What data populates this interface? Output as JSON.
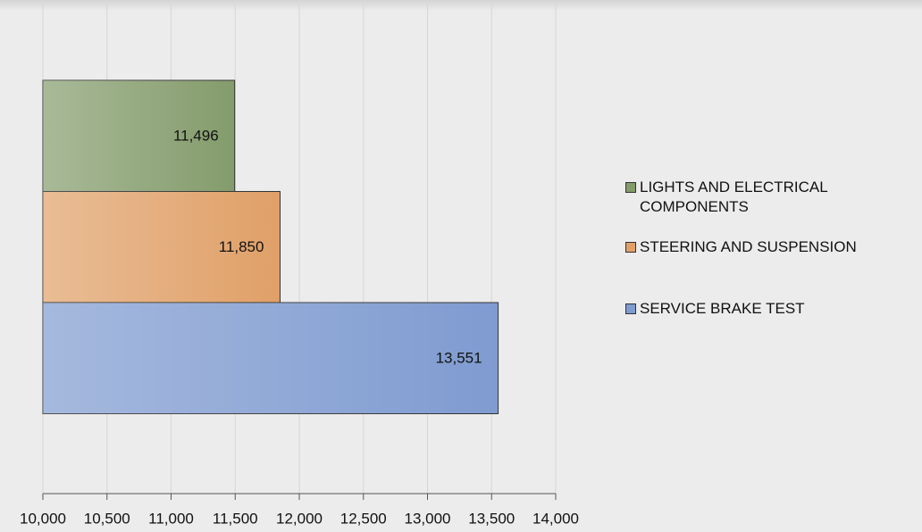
{
  "chart_data": {
    "type": "bar",
    "orientation": "horizontal",
    "series": [
      {
        "name": "LIGHTS AND ELECTRICAL COMPONENTS",
        "color": "#849c6c",
        "values": [
          11496
        ],
        "value_labels": [
          "11,496"
        ]
      },
      {
        "name": "STEERING AND SUSPENSION",
        "color": "#e0a068",
        "values": [
          11850
        ],
        "value_labels": [
          "11,850"
        ]
      },
      {
        "name": "SERVICE BRAKE TEST",
        "color": "#7f9bd0",
        "values": [
          13551
        ],
        "value_labels": [
          "13,551"
        ]
      }
    ],
    "xlim": [
      10000,
      14000
    ],
    "xticks": [
      {
        "value": 10000,
        "label": "10,000"
      },
      {
        "value": 10500,
        "label": "10,500"
      },
      {
        "value": 11000,
        "label": "11,000"
      },
      {
        "value": 11500,
        "label": "11,500"
      },
      {
        "value": 12000,
        "label": "12,000"
      },
      {
        "value": 12500,
        "label": "12,500"
      },
      {
        "value": 13000,
        "label": "13,000"
      },
      {
        "value": 13500,
        "label": "13,500"
      },
      {
        "value": 14000,
        "label": "14,000"
      }
    ],
    "grid": true,
    "legend": "right"
  }
}
